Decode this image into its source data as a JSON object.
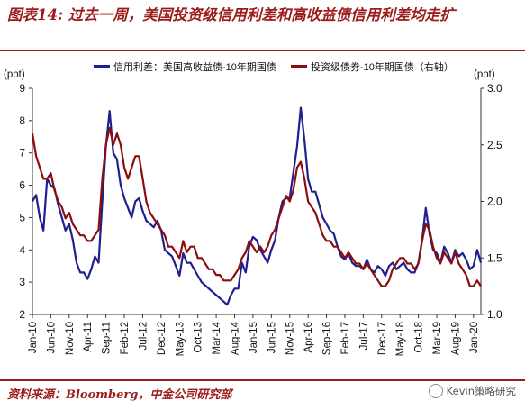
{
  "title": "图表14: 过去一周，美国投资级信用利差和高收益债信用利差均走扩",
  "source": "资料来源：Bloomberg，中金公司研究部",
  "watermark": "Kevin策略研究",
  "colors": {
    "accent": "#9c1b1b",
    "series1": "#1f1f8f",
    "series2": "#8b0d0d",
    "grid": "#cccccc"
  },
  "chart_data": {
    "type": "line",
    "title": "",
    "ylabel_left": "(ppt)",
    "ylabel_right": "(ppt)",
    "ylim_left": [
      2,
      9
    ],
    "ylim_right": [
      1.0,
      3.0
    ],
    "yticks_left": [
      "2",
      "3",
      "4",
      "5",
      "6",
      "7",
      "8",
      "9"
    ],
    "yticks_right": [
      "1.0",
      "1.5",
      "2.0",
      "2.5",
      "3.0"
    ],
    "xlim": [
      "2010-01",
      "2020-03"
    ],
    "xticks": [
      "Jan-10",
      "Jun-10",
      "Nov-10",
      "Apr-11",
      "Sep-11",
      "Feb-12",
      "Jul-12",
      "Dec-12",
      "May-13",
      "Oct-13",
      "Mar-14",
      "Aug-14",
      "Jan-15",
      "Jun-15",
      "Nov-15",
      "Apr-16",
      "Sep-16",
      "Feb-17",
      "Jul-17",
      "Dec-17",
      "May-18",
      "Oct-18",
      "Mar-19",
      "Aug-19",
      "Jan-20"
    ],
    "legend_position": "top",
    "grid": false,
    "series": [
      {
        "name": "信用利差：美国高收益债-10年期国债",
        "axis": "left",
        "points": [
          [
            "2010-01",
            5.5
          ],
          [
            "2010-02",
            5.7
          ],
          [
            "2010-03",
            5.0
          ],
          [
            "2010-04",
            4.6
          ],
          [
            "2010-05",
            6.2
          ],
          [
            "2010-06",
            6.0
          ],
          [
            "2010-07",
            5.9
          ],
          [
            "2010-08",
            5.4
          ],
          [
            "2010-09",
            5.0
          ],
          [
            "2010-10",
            4.6
          ],
          [
            "2010-11",
            4.8
          ],
          [
            "2010-12",
            4.3
          ],
          [
            "2011-01",
            3.6
          ],
          [
            "2011-02",
            3.3
          ],
          [
            "2011-03",
            3.3
          ],
          [
            "2011-04",
            3.1
          ],
          [
            "2011-05",
            3.4
          ],
          [
            "2011-06",
            3.8
          ],
          [
            "2011-07",
            3.6
          ],
          [
            "2011-08",
            5.5
          ],
          [
            "2011-09",
            7.2
          ],
          [
            "2011-10",
            8.3
          ],
          [
            "2011-11",
            7.0
          ],
          [
            "2011-12",
            6.8
          ],
          [
            "2012-01",
            6.0
          ],
          [
            "2012-02",
            5.6
          ],
          [
            "2012-03",
            5.3
          ],
          [
            "2012-04",
            5.0
          ],
          [
            "2012-05",
            5.5
          ],
          [
            "2012-06",
            5.6
          ],
          [
            "2012-07",
            5.2
          ],
          [
            "2012-08",
            4.9
          ],
          [
            "2012-09",
            4.8
          ],
          [
            "2012-10",
            4.7
          ],
          [
            "2012-11",
            4.9
          ],
          [
            "2012-12",
            4.6
          ],
          [
            "2013-01",
            4.0
          ],
          [
            "2013-02",
            3.9
          ],
          [
            "2013-03",
            3.8
          ],
          [
            "2013-04",
            3.5
          ],
          [
            "2013-05",
            3.2
          ],
          [
            "2013-06",
            3.9
          ],
          [
            "2013-07",
            3.6
          ],
          [
            "2013-08",
            3.6
          ],
          [
            "2013-09",
            3.4
          ],
          [
            "2013-10",
            3.2
          ],
          [
            "2013-11",
            3.0
          ],
          [
            "2013-12",
            2.9
          ],
          [
            "2014-01",
            2.8
          ],
          [
            "2014-02",
            2.7
          ],
          [
            "2014-03",
            2.6
          ],
          [
            "2014-04",
            2.5
          ],
          [
            "2014-05",
            2.4
          ],
          [
            "2014-06",
            2.3
          ],
          [
            "2014-07",
            2.6
          ],
          [
            "2014-08",
            2.8
          ],
          [
            "2014-09",
            2.8
          ],
          [
            "2014-10",
            3.6
          ],
          [
            "2014-11",
            3.3
          ],
          [
            "2014-12",
            4.1
          ],
          [
            "2015-01",
            4.4
          ],
          [
            "2015-02",
            4.3
          ],
          [
            "2015-03",
            4.0
          ],
          [
            "2015-04",
            3.8
          ],
          [
            "2015-05",
            3.6
          ],
          [
            "2015-06",
            4.0
          ],
          [
            "2015-07",
            4.3
          ],
          [
            "2015-08",
            5.0
          ],
          [
            "2015-09",
            5.5
          ],
          [
            "2015-10",
            5.6
          ],
          [
            "2015-11",
            5.6
          ],
          [
            "2015-12",
            6.4
          ],
          [
            "2016-01",
            7.2
          ],
          [
            "2016-02",
            8.4
          ],
          [
            "2016-03",
            7.4
          ],
          [
            "2016-04",
            6.2
          ],
          [
            "2016-05",
            5.8
          ],
          [
            "2016-06",
            5.8
          ],
          [
            "2016-07",
            5.4
          ],
          [
            "2016-08",
            5.0
          ],
          [
            "2016-09",
            4.8
          ],
          [
            "2016-10",
            4.6
          ],
          [
            "2016-11",
            4.5
          ],
          [
            "2016-12",
            4.1
          ],
          [
            "2017-01",
            3.8
          ],
          [
            "2017-02",
            3.7
          ],
          [
            "2017-03",
            3.9
          ],
          [
            "2017-04",
            3.6
          ],
          [
            "2017-05",
            3.5
          ],
          [
            "2017-06",
            3.5
          ],
          [
            "2017-07",
            3.4
          ],
          [
            "2017-08",
            3.7
          ],
          [
            "2017-09",
            3.4
          ],
          [
            "2017-10",
            3.3
          ],
          [
            "2017-11",
            3.5
          ],
          [
            "2017-12",
            3.4
          ],
          [
            "2018-01",
            3.2
          ],
          [
            "2018-02",
            3.5
          ],
          [
            "2018-03",
            3.6
          ],
          [
            "2018-04",
            3.4
          ],
          [
            "2018-05",
            3.5
          ],
          [
            "2018-06",
            3.6
          ],
          [
            "2018-07",
            3.4
          ],
          [
            "2018-08",
            3.3
          ],
          [
            "2018-09",
            3.3
          ],
          [
            "2018-10",
            3.6
          ],
          [
            "2018-11",
            4.3
          ],
          [
            "2018-12",
            5.3
          ],
          [
            "2019-01",
            4.5
          ],
          [
            "2019-02",
            4.0
          ],
          [
            "2019-03",
            3.9
          ],
          [
            "2019-04",
            3.6
          ],
          [
            "2019-05",
            4.1
          ],
          [
            "2019-06",
            3.9
          ],
          [
            "2019-07",
            3.6
          ],
          [
            "2019-08",
            4.0
          ],
          [
            "2019-09",
            3.8
          ],
          [
            "2019-10",
            3.9
          ],
          [
            "2019-11",
            3.7
          ],
          [
            "2019-12",
            3.4
          ],
          [
            "2020-01",
            3.5
          ],
          [
            "2020-02",
            4.0
          ],
          [
            "2020-03",
            3.6
          ]
        ]
      },
      {
        "name": "投资级债券-10年期国债（右轴）",
        "axis": "right",
        "points": [
          [
            "2010-01",
            2.6
          ],
          [
            "2010-02",
            2.4
          ],
          [
            "2010-03",
            2.3
          ],
          [
            "2010-04",
            2.2
          ],
          [
            "2010-05",
            2.2
          ],
          [
            "2010-06",
            2.25
          ],
          [
            "2010-07",
            2.1
          ],
          [
            "2010-08",
            2.0
          ],
          [
            "2010-09",
            1.95
          ],
          [
            "2010-10",
            1.85
          ],
          [
            "2010-11",
            1.9
          ],
          [
            "2010-12",
            1.8
          ],
          [
            "2011-01",
            1.75
          ],
          [
            "2011-02",
            1.7
          ],
          [
            "2011-03",
            1.7
          ],
          [
            "2011-04",
            1.65
          ],
          [
            "2011-05",
            1.65
          ],
          [
            "2011-06",
            1.7
          ],
          [
            "2011-07",
            1.75
          ],
          [
            "2011-08",
            2.2
          ],
          [
            "2011-09",
            2.5
          ],
          [
            "2011-10",
            2.65
          ],
          [
            "2011-11",
            2.5
          ],
          [
            "2011-12",
            2.6
          ],
          [
            "2012-01",
            2.5
          ],
          [
            "2012-02",
            2.3
          ],
          [
            "2012-03",
            2.2
          ],
          [
            "2012-04",
            2.3
          ],
          [
            "2012-05",
            2.4
          ],
          [
            "2012-06",
            2.4
          ],
          [
            "2012-07",
            2.2
          ],
          [
            "2012-08",
            2.0
          ],
          [
            "2012-09",
            1.9
          ],
          [
            "2012-10",
            1.85
          ],
          [
            "2012-11",
            1.8
          ],
          [
            "2012-12",
            1.75
          ],
          [
            "2013-01",
            1.7
          ],
          [
            "2013-02",
            1.6
          ],
          [
            "2013-03",
            1.6
          ],
          [
            "2013-04",
            1.55
          ],
          [
            "2013-05",
            1.5
          ],
          [
            "2013-06",
            1.65
          ],
          [
            "2013-07",
            1.55
          ],
          [
            "2013-08",
            1.6
          ],
          [
            "2013-09",
            1.6
          ],
          [
            "2013-10",
            1.5
          ],
          [
            "2013-11",
            1.5
          ],
          [
            "2013-12",
            1.45
          ],
          [
            "2014-01",
            1.4
          ],
          [
            "2014-02",
            1.4
          ],
          [
            "2014-03",
            1.35
          ],
          [
            "2014-04",
            1.35
          ],
          [
            "2014-05",
            1.3
          ],
          [
            "2014-06",
            1.3
          ],
          [
            "2014-07",
            1.3
          ],
          [
            "2014-08",
            1.35
          ],
          [
            "2014-09",
            1.4
          ],
          [
            "2014-10",
            1.5
          ],
          [
            "2014-11",
            1.55
          ],
          [
            "2014-12",
            1.65
          ],
          [
            "2015-01",
            1.6
          ],
          [
            "2015-02",
            1.55
          ],
          [
            "2015-03",
            1.6
          ],
          [
            "2015-04",
            1.55
          ],
          [
            "2015-05",
            1.6
          ],
          [
            "2015-06",
            1.7
          ],
          [
            "2015-07",
            1.75
          ],
          [
            "2015-08",
            1.85
          ],
          [
            "2015-09",
            1.95
          ],
          [
            "2015-10",
            2.05
          ],
          [
            "2015-11",
            2.0
          ],
          [
            "2015-12",
            2.1
          ],
          [
            "2016-01",
            2.3
          ],
          [
            "2016-02",
            2.35
          ],
          [
            "2016-03",
            2.2
          ],
          [
            "2016-04",
            2.0
          ],
          [
            "2016-05",
            1.95
          ],
          [
            "2016-06",
            1.9
          ],
          [
            "2016-07",
            1.8
          ],
          [
            "2016-08",
            1.7
          ],
          [
            "2016-09",
            1.65
          ],
          [
            "2016-10",
            1.65
          ],
          [
            "2016-11",
            1.6
          ],
          [
            "2016-12",
            1.6
          ],
          [
            "2017-01",
            1.55
          ],
          [
            "2017-02",
            1.5
          ],
          [
            "2017-03",
            1.55
          ],
          [
            "2017-04",
            1.5
          ],
          [
            "2017-05",
            1.45
          ],
          [
            "2017-06",
            1.45
          ],
          [
            "2017-07",
            1.4
          ],
          [
            "2017-08",
            1.45
          ],
          [
            "2017-09",
            1.4
          ],
          [
            "2017-10",
            1.35
          ],
          [
            "2017-11",
            1.3
          ],
          [
            "2017-12",
            1.25
          ],
          [
            "2018-01",
            1.25
          ],
          [
            "2018-02",
            1.3
          ],
          [
            "2018-03",
            1.4
          ],
          [
            "2018-04",
            1.45
          ],
          [
            "2018-05",
            1.5
          ],
          [
            "2018-06",
            1.5
          ],
          [
            "2018-07",
            1.45
          ],
          [
            "2018-08",
            1.45
          ],
          [
            "2018-09",
            1.4
          ],
          [
            "2018-10",
            1.45
          ],
          [
            "2018-11",
            1.65
          ],
          [
            "2018-12",
            1.8
          ],
          [
            "2019-01",
            1.75
          ],
          [
            "2019-02",
            1.6
          ],
          [
            "2019-03",
            1.5
          ],
          [
            "2019-04",
            1.45
          ],
          [
            "2019-05",
            1.55
          ],
          [
            "2019-06",
            1.5
          ],
          [
            "2019-07",
            1.45
          ],
          [
            "2019-08",
            1.55
          ],
          [
            "2019-09",
            1.45
          ],
          [
            "2019-10",
            1.4
          ],
          [
            "2019-11",
            1.35
          ],
          [
            "2019-12",
            1.25
          ],
          [
            "2020-01",
            1.25
          ],
          [
            "2020-02",
            1.3
          ],
          [
            "2020-03",
            1.25
          ]
        ]
      }
    ]
  }
}
